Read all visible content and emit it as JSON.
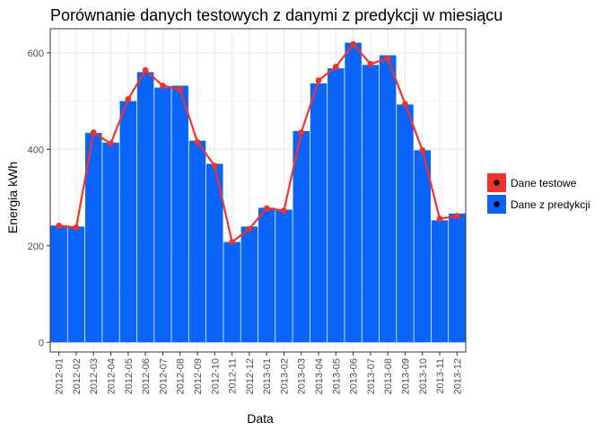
{
  "chart_data": {
    "type": "bar",
    "title": "Porównanie danych testowych z danymi z predykcji w miesiącu",
    "xlabel": "Data",
    "ylabel": "Energia kWh",
    "categories": [
      "2012-01",
      "2012-02",
      "2012-03",
      "2012-04",
      "2012-05",
      "2012-06",
      "2012-07",
      "2012-08",
      "2012-09",
      "2012-10",
      "2012-11",
      "2012-12",
      "2013-01",
      "2013-02",
      "2013-03",
      "2013-04",
      "2013-05",
      "2013-06",
      "2013-07",
      "2013-08",
      "2013-09",
      "2013-10",
      "2013-11",
      "2013-12"
    ],
    "y_ticks": [
      0,
      200,
      400,
      600
    ],
    "ylim": [
      -20,
      650
    ],
    "grid": true,
    "legend_position": "right",
    "series": [
      {
        "name": "Dane testowe",
        "kind": "line",
        "color": "#f0322f",
        "values": [
          242,
          238,
          435,
          412,
          504,
          564,
          532,
          525,
          415,
          366,
          208,
          235,
          278,
          273,
          435,
          543,
          571,
          618,
          577,
          588,
          494,
          398,
          256,
          262
        ]
      },
      {
        "name": "Dane z predykcji",
        "kind": "bar",
        "color": "#0a64fa",
        "values": [
          242,
          240,
          434,
          414,
          500,
          560,
          528,
          532,
          418,
          370,
          208,
          240,
          279,
          275,
          438,
          537,
          568,
          621,
          575,
          595,
          493,
          398,
          253,
          267
        ]
      }
    ]
  }
}
